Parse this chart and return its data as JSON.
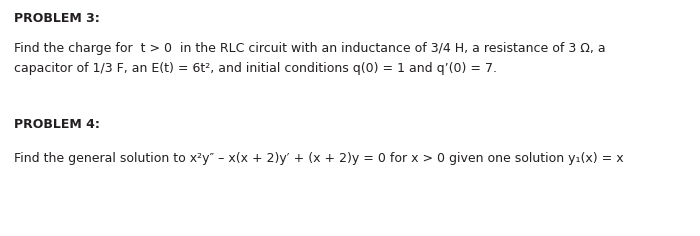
{
  "background_color": "#ffffff",
  "problem3_header": "PROBLEM 3:",
  "problem3_line1": "Find the charge for  t > 0  in the RLC circuit with an inductance of 3/4 H, a resistance of 3 Ω, a",
  "problem3_line2": "capacitor of 1/3 F, an E(t) = 6t², and initial conditions q(0) = 1 and q’(0) = 7.",
  "problem4_header": "PROBLEM 4:",
  "problem4_line": "Find the general solution to x²y″ – x(x + 2)y′ + (x + 2)y = 0 for x > 0 given one solution y₁(x) = x",
  "font_family": "DejaVu Sans Condensed",
  "header_fontsize": 9.0,
  "body_fontsize": 9.0,
  "text_color": "#231f20"
}
